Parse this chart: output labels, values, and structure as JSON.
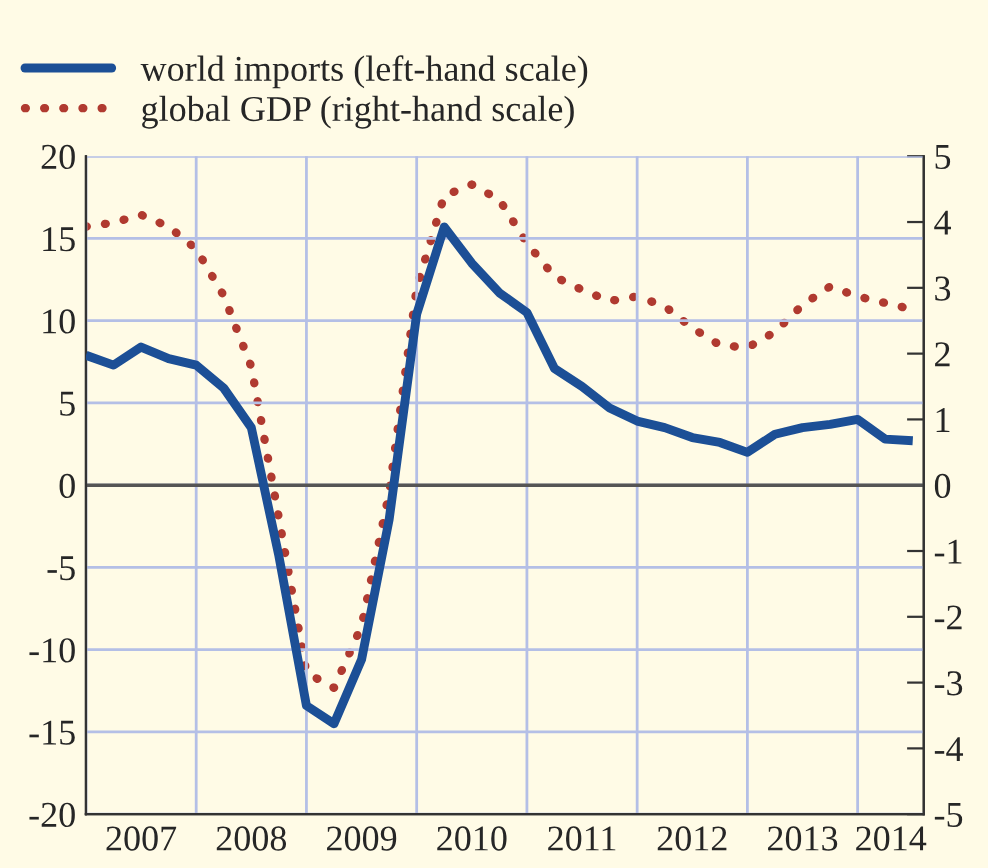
{
  "chart_data": {
    "type": "line",
    "x": [
      2007.0,
      2007.25,
      2007.5,
      2007.75,
      2008.0,
      2008.25,
      2008.5,
      2008.75,
      2009.0,
      2009.25,
      2009.5,
      2009.75,
      2010.0,
      2010.25,
      2010.5,
      2010.75,
      2011.0,
      2011.25,
      2011.5,
      2011.75,
      2012.0,
      2012.25,
      2012.5,
      2012.75,
      2013.0,
      2013.25,
      2013.5,
      2013.75,
      2014.0,
      2014.25,
      2014.5
    ],
    "series": [
      {
        "name": "world imports (left-hand scale)",
        "color": "#1c4f96",
        "line_style": "solid",
        "values": [
          7.9,
          7.3,
          8.4,
          7.7,
          7.3,
          5.9,
          3.5,
          -4.3,
          -13.4,
          -14.5,
          -10.6,
          -2.1,
          10.4,
          15.7,
          13.5,
          11.7,
          10.5,
          7.1,
          6.0,
          4.7,
          3.9,
          3.5,
          2.9,
          2.6,
          2.0,
          3.1,
          3.5,
          3.7,
          4.0,
          2.8,
          2.7
        ]
      },
      {
        "name": "global GDP (right-hand scale)",
        "color": "#b03a30",
        "line_style": "dotted",
        "axis": "y2",
        "values": [
          3.93,
          3.99,
          4.11,
          3.93,
          3.59,
          2.88,
          1.8,
          -0.5,
          -2.85,
          -3.08,
          -2.14,
          -0.12,
          3.0,
          4.4,
          4.57,
          4.34,
          3.68,
          3.17,
          2.97,
          2.8,
          2.87,
          2.72,
          2.39,
          2.13,
          2.09,
          2.33,
          2.74,
          3.02,
          2.87,
          2.77,
          2.67
        ]
      }
    ],
    "xlim": [
      2007,
      2014.6
    ],
    "xticks": [
      {
        "value": 2007,
        "label": null
      },
      {
        "value": 2007.5,
        "label": "2007"
      },
      {
        "value": 2008,
        "label": null
      },
      {
        "value": 2008.5,
        "label": "2008"
      },
      {
        "value": 2009,
        "label": null
      },
      {
        "value": 2009.5,
        "label": "2009"
      },
      {
        "value": 2010,
        "label": null
      },
      {
        "value": 2010.5,
        "label": "2010"
      },
      {
        "value": 2011,
        "label": null
      },
      {
        "value": 2011.5,
        "label": "2011"
      },
      {
        "value": 2012,
        "label": null
      },
      {
        "value": 2012.5,
        "label": "2012"
      },
      {
        "value": 2013,
        "label": null
      },
      {
        "value": 2013.5,
        "label": "2013"
      },
      {
        "value": 2014,
        "label": null
      },
      {
        "value": 2014.3,
        "label": "2014"
      }
    ],
    "ylim": [
      -20,
      20
    ],
    "yticks": [
      -20,
      -15,
      -10,
      -5,
      0,
      5,
      10,
      15,
      20
    ],
    "y2lim": [
      -5,
      5
    ],
    "y2ticks": [
      -5,
      -4,
      -3,
      -2,
      -1,
      0,
      1,
      2,
      3,
      4,
      5
    ],
    "ref_lines": [
      {
        "axis": "y",
        "value": 0,
        "color": "#555555"
      }
    ],
    "grid": true,
    "legend": "top left",
    "marker": "none"
  }
}
